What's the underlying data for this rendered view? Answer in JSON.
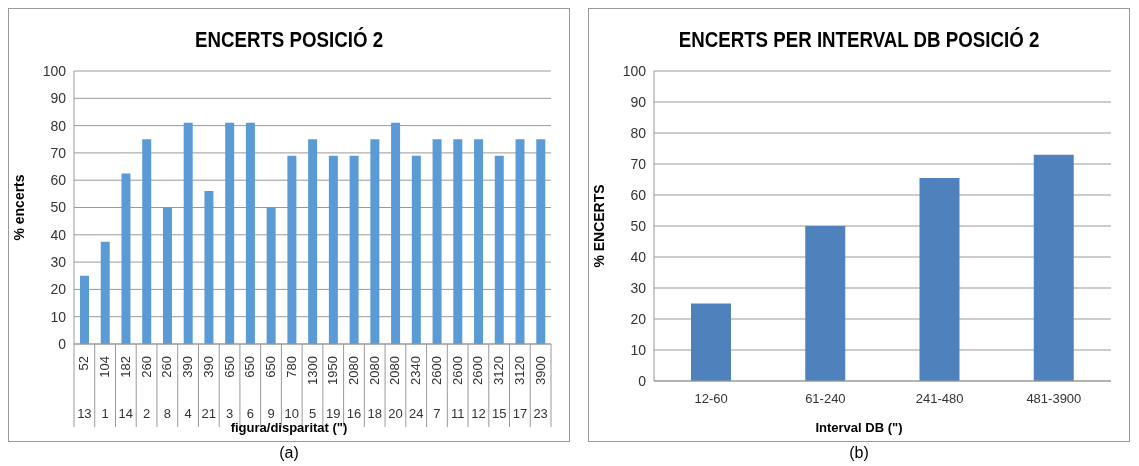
{
  "chart_data": [
    {
      "type": "bar",
      "title": "ENCERTS POSICIÓ 2",
      "xlabel": "figura/disparitat (\")",
      "ylabel": "% encerts",
      "categories": [
        "13",
        "1",
        "14",
        "2",
        "8",
        "4",
        "21",
        "3",
        "6",
        "9",
        "10",
        "5",
        "19",
        "16",
        "18",
        "20",
        "24",
        "7",
        "11",
        "12",
        "15",
        "17",
        "23"
      ],
      "values": [
        25,
        37.5,
        62.5,
        75,
        50,
        81,
        56,
        81,
        81,
        50,
        69,
        75,
        69,
        69,
        75,
        81,
        69,
        75,
        75,
        75,
        69,
        75,
        75
      ],
      "color": "#5b9bd5",
      "ylim": [
        0,
        100
      ],
      "yticks": [
        0,
        10,
        20,
        30,
        40,
        50,
        60,
        70,
        80,
        90,
        100
      ],
      "grid": "y",
      "annotations": [
        "52",
        "104",
        "182",
        "260",
        "260",
        "390",
        "390",
        "650",
        "650",
        "650",
        "780",
        "1300",
        "1950",
        "2080",
        "2080",
        "2080",
        "2340",
        "2600",
        "2600",
        "2600",
        "3120",
        "3120",
        "3900",
        "(a)"
      ]
    },
    {
      "type": "bar",
      "title": "ENCERTS PER INTERVAL DB POSICIÓ 2",
      "xlabel": "Interval DB (\")",
      "ylabel": "% ENCERTS",
      "categories": [
        "12-60",
        "61-240",
        "241-480",
        "481-3900"
      ],
      "values": [
        25,
        50,
        65.5,
        73
      ],
      "color": "#4f81bd",
      "ylim": [
        0,
        100
      ],
      "yticks": [
        0,
        10,
        20,
        30,
        40,
        50,
        60,
        70,
        80,
        90,
        100
      ],
      "grid": "y",
      "annotations": [
        "(b)"
      ]
    }
  ]
}
